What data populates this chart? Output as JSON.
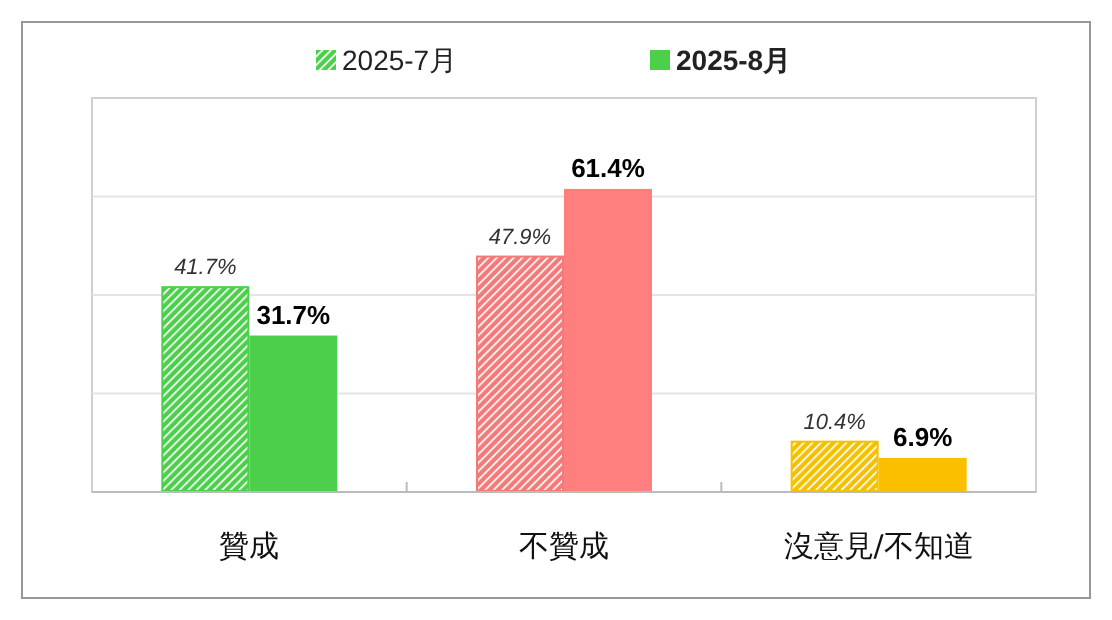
{
  "chart_data": {
    "type": "bar",
    "categories": [
      "贊成",
      "不贊成",
      "沒意見/不知道"
    ],
    "series": [
      {
        "name": "2025-7月",
        "color": "#4cd04c",
        "colors": [
          "#4cd04c",
          "#f47a7a",
          "#f5c000"
        ],
        "values": [
          41.7,
          47.9,
          10.4
        ],
        "value_labels": [
          "41.7%",
          "47.9%",
          "10.4%"
        ]
      },
      {
        "name": "2025-8月",
        "color": "#4cd04c",
        "colors": [
          "#4cd04c",
          "#ff7f7f",
          "#fbbf00"
        ],
        "values": [
          31.7,
          61.4,
          6.9
        ],
        "value_labels": [
          "31.7%",
          "61.4%",
          "6.9%"
        ]
      }
    ],
    "grid": "y",
    "tick_labels": "x",
    "legend": "top"
  }
}
